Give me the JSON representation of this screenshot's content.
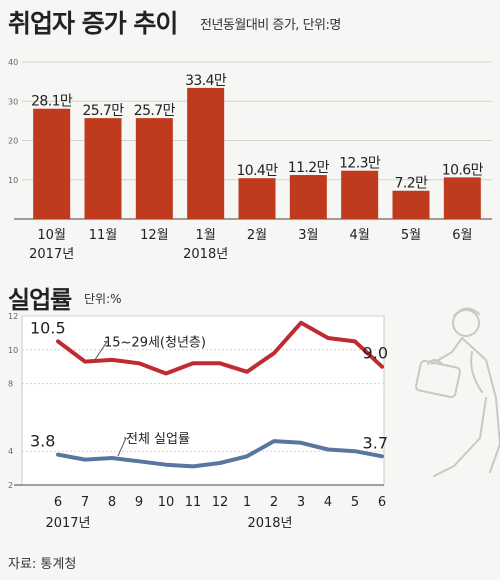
{
  "header": {
    "title": "취업자 증가 추이",
    "subtitle": "전년동월대비 증가, 단위:명"
  },
  "section2": {
    "title": "실업률",
    "subtitle": "단위:%"
  },
  "source": "자료: 통계청",
  "colors": {
    "red": "#c03a1e",
    "line_red": "#c02a32",
    "line_blue": "#5877a0"
  },
  "illustration": "running-man-with-briefcase",
  "chart_data": [
    {
      "type": "bar",
      "categories": [
        "10월",
        "11월",
        "12월",
        "1월",
        "2월",
        "3월",
        "4월",
        "5월",
        "6월"
      ],
      "values": [
        28.1,
        25.7,
        25.7,
        33.4,
        10.4,
        11.2,
        12.3,
        7.2,
        10.6
      ],
      "labels": [
        "28.1만",
        "25.7만",
        "25.7만",
        "33.4만",
        "10.4만",
        "11.2만",
        "12.3만",
        "7.2만",
        "10.6만"
      ],
      "year_labels": [
        {
          "index": 0,
          "text": "2017년"
        },
        {
          "index": 3,
          "text": "2018년"
        }
      ],
      "yticks": [
        10,
        20,
        30,
        40
      ],
      "ylim": [
        0,
        40
      ],
      "grid": true
    },
    {
      "type": "line",
      "x": [
        "6",
        "7",
        "8",
        "9",
        "10",
        "11",
        "12",
        "1",
        "2",
        "3",
        "4",
        "5",
        "6"
      ],
      "series": [
        {
          "name": "15~29세(청년층)",
          "values": [
            10.5,
            9.3,
            9.4,
            9.2,
            8.6,
            9.2,
            9.2,
            8.7,
            9.8,
            11.6,
            10.7,
            10.5,
            9.0
          ]
        },
        {
          "name": "전체 실업률",
          "values": [
            3.8,
            3.5,
            3.6,
            3.4,
            3.2,
            3.1,
            3.3,
            3.7,
            4.6,
            4.5,
            4.1,
            4.0,
            3.7
          ]
        }
      ],
      "start_label": {
        "youth": "10.5",
        "total": "3.8"
      },
      "end_label": {
        "youth": "9.0",
        "total": "3.7"
      },
      "year_labels": [
        {
          "index": 0,
          "text": "2017년"
        },
        {
          "index": 8,
          "text": "2018년"
        }
      ],
      "yticks": [
        2,
        4,
        8,
        10,
        12
      ],
      "ylim": [
        2,
        12
      ],
      "grid": true
    }
  ]
}
